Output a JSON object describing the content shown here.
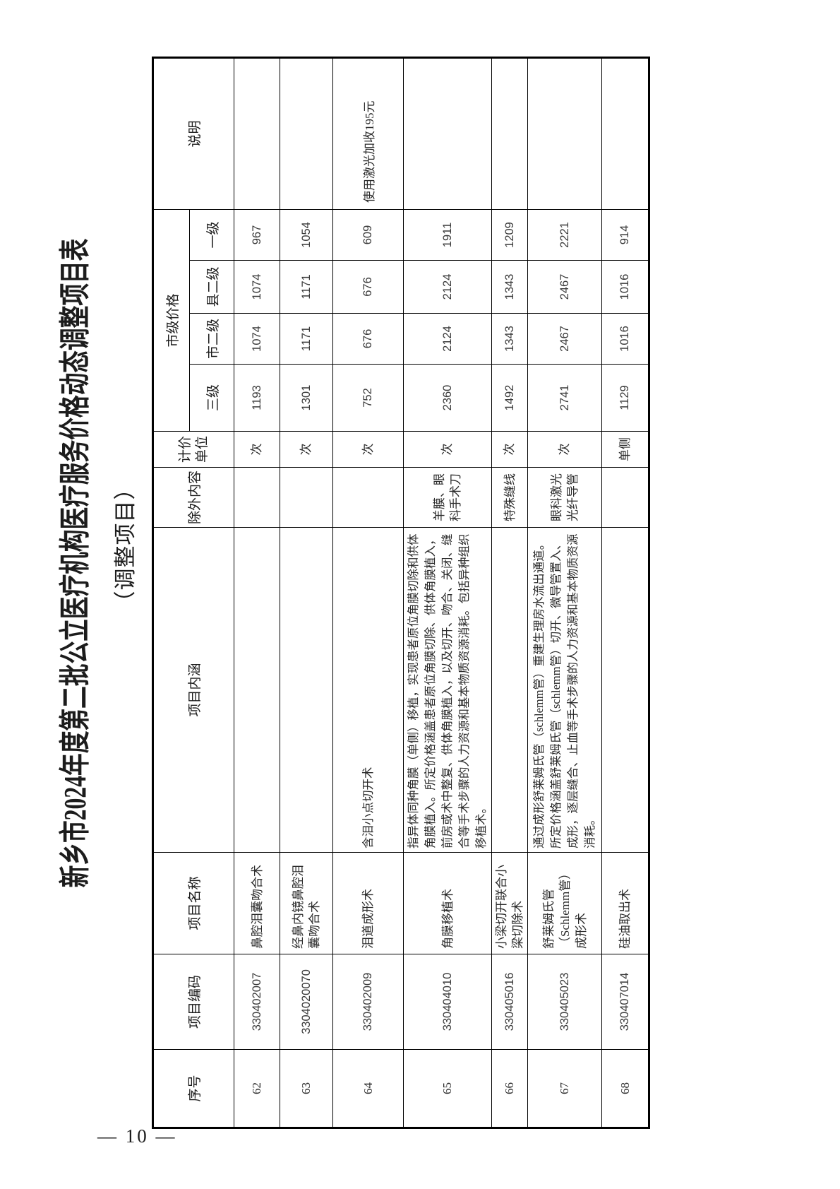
{
  "title": "新乡市2024年度第二批公立医疗机构医疗服务价格动态调整项目表",
  "subtitle": "（调整项目）",
  "page": {
    "number_label": "— 10 —"
  },
  "table": {
    "headers": {
      "xuhao": "序号",
      "bianma": "项目编码",
      "mingcheng": "项目名称",
      "neihan": "项目内涵",
      "chuwai": "除外内容",
      "jijia": "计价单位",
      "price_group": "市级价格",
      "sanji": "三级",
      "shierji": "市二级",
      "xianerji": "县二级",
      "yiji": "一级",
      "shuoming": "说明"
    },
    "rows": [
      {
        "xuhao": "62",
        "bianma": "330402007",
        "mingcheng": "鼻腔泪囊吻合术",
        "neihan": "",
        "chuwai": "",
        "jijia": "次",
        "sanji": "1193",
        "shierji": "1074",
        "xianerji": "1074",
        "yiji": "967",
        "shuoming": ""
      },
      {
        "xuhao": "63",
        "bianma": "3304020070",
        "mingcheng": "经鼻内镜鼻腔泪囊吻合术",
        "neihan": "",
        "chuwai": "",
        "jijia": "次",
        "sanji": "1301",
        "shierji": "1171",
        "xianerji": "1171",
        "yiji": "1054",
        "shuoming": ""
      },
      {
        "xuhao": "64",
        "bianma": "330402009",
        "mingcheng": "泪道成形术",
        "neihan": "含泪小点切开术",
        "chuwai": "",
        "jijia": "次",
        "sanji": "752",
        "shierji": "676",
        "xianerji": "676",
        "yiji": "609",
        "shuoming": "使用激光加收195元"
      },
      {
        "xuhao": "65",
        "bianma": "330404010",
        "mingcheng": "角膜移植术",
        "neihan": "指异体同种角膜（单侧）移植，实现患者原位角膜切除和供体角膜植入。所定价格涵盖患者原位角膜切除、供体角膜植入，前房或术中整复、供体角膜植入，以及切开、吻合、关闭、缝合等手术步骤的人力资源和基本物质资源消耗。包括异种组织移植术。",
        "chuwai": "羊膜、眼科手术刀",
        "jijia": "次",
        "sanji": "2360",
        "shierji": "2124",
        "xianerji": "2124",
        "yiji": "1911",
        "shuoming": ""
      },
      {
        "xuhao": "66",
        "bianma": "330405016",
        "mingcheng": "小梁切开联合小梁切除术",
        "neihan": "",
        "chuwai": "特殊缝线",
        "jijia": "次",
        "sanji": "1492",
        "shierji": "1343",
        "xianerji": "1343",
        "yiji": "1209",
        "shuoming": ""
      },
      {
        "xuhao": "67",
        "bianma": "330405023",
        "mingcheng": "舒莱姆氏管（Schlemm管）成形术",
        "neihan": "通过成形舒莱姆氏管（schlemm管）重建生理房水流出通道。所定价格涵盖舒莱姆氏管（schlemm管）切开、微导管置入、成形，逐层缝合、止血等手术步骤的人力资源和基本物质资源消耗。",
        "chuwai": "眼科激光光纤导管",
        "jijia": "次",
        "sanji": "2741",
        "shierji": "2467",
        "xianerji": "2467",
        "yiji": "2221",
        "shuoming": ""
      },
      {
        "xuhao": "68",
        "bianma": "330407014",
        "mingcheng": "硅油取出术",
        "neihan": "",
        "chuwai": "",
        "jijia": "单侧",
        "sanji": "1129",
        "shierji": "1016",
        "xianerji": "1016",
        "yiji": "914",
        "shuoming": ""
      }
    ]
  }
}
